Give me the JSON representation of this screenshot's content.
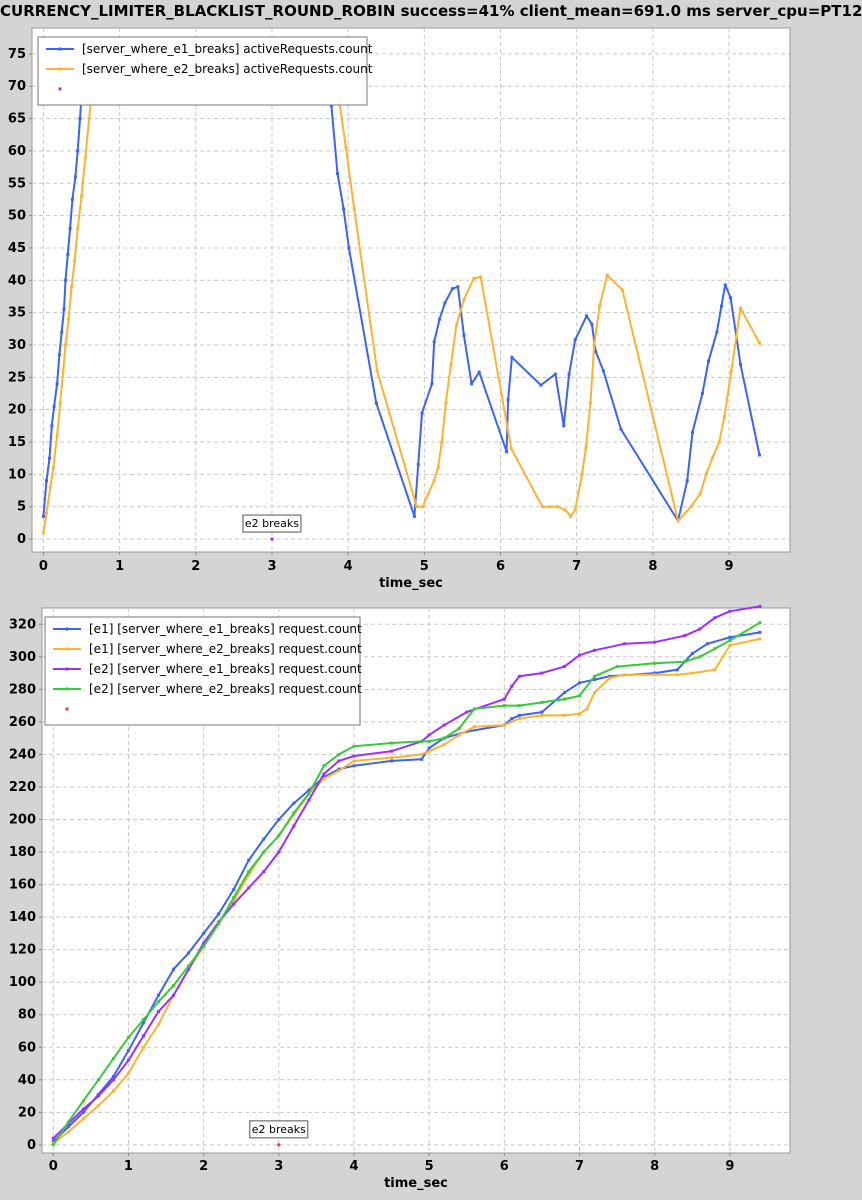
{
  "title": "CURRENCY_LIMITER_BLACKLIST_ROUND_ROBIN success=41% client_mean=691.0 ms server_cpu=PT12",
  "chart_data": [
    {
      "type": "line",
      "xlabel": "time_sec",
      "ylabel": "",
      "xlim": [
        -0.15,
        9.8
      ],
      "ylim": [
        -2,
        79
      ],
      "xticks": [
        0,
        1,
        2,
        3,
        4,
        5,
        6,
        7,
        8,
        9
      ],
      "yticks": [
        0,
        5,
        10,
        15,
        20,
        25,
        30,
        35,
        40,
        45,
        50,
        55,
        60,
        65,
        70,
        75
      ],
      "grid": true,
      "legend_position": "top-left",
      "annotation": {
        "label": "e2 breaks",
        "x": 3,
        "y": 0,
        "color": "#9b30ff"
      },
      "series": [
        {
          "name": "[server_where_e1_breaks] activeRequests.count",
          "color": "#3c64f0",
          "x": [
            0.0,
            0.04,
            0.08,
            0.11,
            0.14,
            0.18,
            0.21,
            0.24,
            0.27,
            0.29,
            0.32,
            0.35,
            0.38,
            0.42,
            0.45,
            0.48,
            0.5,
            0.55,
            0.6,
            0.65,
            0.7,
            3.72,
            3.78,
            3.86,
            3.94,
            4.01,
            4.37,
            4.87,
            4.92,
            4.97,
            5.1,
            5.13,
            5.2,
            5.27,
            5.37,
            5.44,
            5.52,
            5.62,
            5.72,
            6.08,
            6.1,
            6.15,
            6.53,
            6.72,
            6.83,
            6.9,
            6.98,
            7.13,
            7.2,
            7.25,
            7.35,
            7.58,
            8.33,
            8.45,
            8.52,
            8.65,
            8.73,
            8.84,
            8.9,
            8.95,
            9.02,
            9.15,
            9.4
          ],
          "y": [
            3.5,
            9,
            12.5,
            17.5,
            20.5,
            24,
            28.5,
            32,
            35.5,
            40,
            44,
            48,
            52.5,
            56,
            60,
            65,
            68.5,
            72,
            74,
            75,
            76,
            74,
            67,
            56.5,
            51,
            45,
            21,
            3.5,
            11.5,
            19.5,
            24,
            30.5,
            34,
            36.5,
            38.7,
            39,
            31.5,
            24,
            25.8,
            13.5,
            21.5,
            28.1,
            23.8,
            25.5,
            17.5,
            25.5,
            30.8,
            34.5,
            33.2,
            29,
            26,
            17,
            2.8,
            9,
            16.5,
            22.5,
            27.5,
            32,
            36,
            39.3,
            37.3,
            27,
            13
          ]
        },
        {
          "name": "[server_where_e2_breaks] activeRequests.count",
          "color": "#fab332",
          "x": [
            0.0,
            0.04,
            0.09,
            0.13,
            0.18,
            0.22,
            0.26,
            0.29,
            0.33,
            0.37,
            0.41,
            0.45,
            0.5,
            0.55,
            0.6,
            0.66,
            3.82,
            3.88,
            3.97,
            4.08,
            4.38,
            4.9,
            4.98,
            5.05,
            5.13,
            5.18,
            5.23,
            5.28,
            5.35,
            5.42,
            5.52,
            5.65,
            5.74,
            6.14,
            6.55,
            6.65,
            6.75,
            6.85,
            6.92,
            6.98,
            7.07,
            7.12,
            7.18,
            7.23,
            7.3,
            7.4,
            7.6,
            8.33,
            8.5,
            8.62,
            8.7,
            8.78,
            8.87,
            8.94,
            9.03,
            9.15,
            9.4
          ],
          "y": [
            1,
            4,
            8,
            11,
            16,
            21,
            26,
            30,
            34,
            39,
            43,
            48,
            53,
            59,
            65,
            72,
            73,
            68,
            60.5,
            51,
            26,
            5,
            5,
            7,
            9,
            11,
            15,
            21,
            27,
            33,
            37,
            40.3,
            40.5,
            14,
            5,
            5,
            5,
            4.5,
            3.5,
            4.5,
            10,
            14,
            21,
            30,
            36,
            40.8,
            38.5,
            2.8,
            5,
            7,
            10,
            12.5,
            15,
            19,
            26,
            35.7,
            30.3
          ]
        }
      ]
    },
    {
      "type": "line",
      "xlabel": "time_sec",
      "ylabel": "",
      "xlim": [
        -0.15,
        9.8
      ],
      "ylim": [
        -5,
        330
      ],
      "xticks": [
        0,
        1,
        2,
        3,
        4,
        5,
        6,
        7,
        8,
        9
      ],
      "yticks": [
        0,
        20,
        40,
        60,
        80,
        100,
        120,
        140,
        160,
        180,
        200,
        220,
        240,
        260,
        280,
        300,
        320
      ],
      "grid": true,
      "legend_position": "top-left",
      "annotation": {
        "label": "e2 breaks",
        "x": 3,
        "y": 0,
        "color": "#e0402a"
      },
      "series": [
        {
          "name": "[e1] [server_where_e1_breaks] request.count",
          "color": "#3c64f0",
          "x": [
            0,
            0.2,
            0.4,
            0.6,
            0.8,
            1.0,
            1.2,
            1.4,
            1.6,
            1.8,
            2.0,
            2.2,
            2.4,
            2.6,
            2.8,
            3.0,
            3.2,
            3.4,
            3.6,
            3.8,
            4.0,
            4.5,
            4.9,
            5.0,
            5.2,
            5.5,
            6.0,
            6.1,
            6.2,
            6.5,
            6.8,
            7.0,
            7.2,
            7.4,
            8.0,
            8.3,
            8.5,
            8.7,
            9.0,
            9.4
          ],
          "y": [
            2,
            11,
            20,
            31,
            42,
            58,
            75,
            92,
            108,
            118,
            130,
            142,
            157,
            175,
            188,
            200,
            210,
            218,
            226,
            231,
            233,
            236,
            237,
            244,
            250,
            254,
            258,
            262,
            264,
            266,
            278,
            284,
            286,
            288,
            290,
            292,
            302,
            308,
            312,
            315
          ]
        },
        {
          "name": "[e1] [server_where_e2_breaks] request.count",
          "color": "#fab332",
          "x": [
            0,
            0.2,
            0.4,
            0.6,
            0.8,
            1.0,
            1.2,
            1.4,
            1.6,
            1.8,
            2.0,
            2.2,
            2.4,
            2.6,
            2.8,
            3.0,
            3.2,
            3.4,
            3.6,
            3.8,
            4.0,
            4.5,
            4.9,
            5.0,
            5.2,
            5.4,
            5.6,
            6.0,
            6.2,
            6.5,
            6.8,
            7.0,
            7.1,
            7.2,
            7.4,
            7.6,
            8.0,
            8.3,
            8.5,
            8.8,
            9.0,
            9.4
          ],
          "y": [
            1,
            8,
            16,
            24,
            33,
            44,
            60,
            74,
            92,
            108,
            122,
            136,
            150,
            166,
            180,
            190,
            203,
            216,
            225,
            230,
            236,
            238,
            240,
            242,
            246,
            252,
            257,
            258,
            262,
            264,
            264,
            265,
            268,
            278,
            287,
            289,
            289,
            289,
            290,
            292,
            307,
            311
          ]
        },
        {
          "name": "[e2] [server_where_e1_breaks] request.count",
          "color": "#9b30ff",
          "x": [
            0,
            0.2,
            0.4,
            0.6,
            0.8,
            1.0,
            1.2,
            1.4,
            1.6,
            1.8,
            2.0,
            2.2,
            2.4,
            2.6,
            2.8,
            3.0,
            3.2,
            3.4,
            3.6,
            3.8,
            4.0,
            4.5,
            4.9,
            5.0,
            5.2,
            5.5,
            6.0,
            6.1,
            6.2,
            6.5,
            6.8,
            7.0,
            7.2,
            7.6,
            8.0,
            8.4,
            8.6,
            8.8,
            9.0,
            9.4
          ],
          "y": [
            4,
            13,
            22,
            30,
            40,
            52,
            67,
            82,
            92,
            108,
            124,
            137,
            148,
            158,
            168,
            180,
            196,
            212,
            228,
            236,
            239,
            242,
            248,
            252,
            258,
            266,
            274,
            282,
            288,
            290,
            294,
            301,
            304,
            308,
            309,
            313,
            317,
            324,
            328,
            331
          ]
        },
        {
          "name": "[e2] [server_where_e2_breaks] request.count",
          "color": "#3cc83c",
          "x": [
            0,
            0.2,
            0.4,
            0.6,
            0.8,
            1.0,
            1.2,
            1.4,
            1.6,
            1.8,
            2.0,
            2.2,
            2.4,
            2.6,
            2.8,
            3.0,
            3.2,
            3.4,
            3.6,
            3.8,
            4.0,
            4.5,
            4.9,
            5.0,
            5.2,
            5.4,
            5.6,
            6.0,
            6.2,
            6.5,
            6.8,
            7.0,
            7.2,
            7.5,
            8.0,
            8.4,
            8.6,
            8.8,
            9.0,
            9.4
          ],
          "y": [
            0,
            14,
            27,
            40,
            53,
            66,
            77,
            88,
            98,
            110,
            122,
            136,
            152,
            168,
            180,
            190,
            204,
            216,
            233,
            240,
            245,
            247,
            248,
            248,
            250,
            256,
            268,
            270,
            270,
            272,
            274,
            276,
            288,
            294,
            296,
            297,
            300,
            305,
            310,
            321
          ]
        }
      ]
    }
  ]
}
